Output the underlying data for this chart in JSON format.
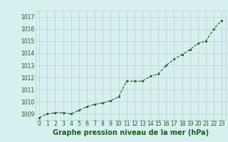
{
  "x": [
    0,
    1,
    2,
    3,
    4,
    5,
    6,
    7,
    8,
    9,
    10,
    11,
    12,
    13,
    14,
    15,
    16,
    17,
    18,
    19,
    20,
    21,
    22,
    23
  ],
  "y": [
    1008.7,
    1009.0,
    1009.1,
    1009.1,
    1009.0,
    1009.3,
    1009.6,
    1009.8,
    1009.9,
    1010.1,
    1010.4,
    1011.7,
    1011.7,
    1011.7,
    1012.1,
    1012.3,
    1013.0,
    1013.5,
    1013.9,
    1014.3,
    1014.8,
    1015.0,
    1016.0,
    1016.7
  ],
  "line_color": "#1a5e1a",
  "marker": "s",
  "marker_size": 2.0,
  "bg_color": "#d6f0ef",
  "grid_color": "#b8d0ce",
  "xlabel": "Graphe pression niveau de la mer (hPa)",
  "ylabel": "",
  "ylim": [
    1008.5,
    1017.5
  ],
  "xlim": [
    -0.5,
    23.5
  ],
  "yticks": [
    1009,
    1010,
    1011,
    1012,
    1013,
    1014,
    1015,
    1016,
    1017
  ],
  "xticks": [
    0,
    1,
    2,
    3,
    4,
    5,
    6,
    7,
    8,
    9,
    10,
    11,
    12,
    13,
    14,
    15,
    16,
    17,
    18,
    19,
    20,
    21,
    22,
    23
  ],
  "tick_label_size": 5.5,
  "xlabel_size": 7.0,
  "xlabel_bold": true,
  "line_width": 0.8,
  "grid_linewidth": 0.5,
  "line_color_hex": "#1a5e1a",
  "xlabel_color": "#1a5e1a"
}
